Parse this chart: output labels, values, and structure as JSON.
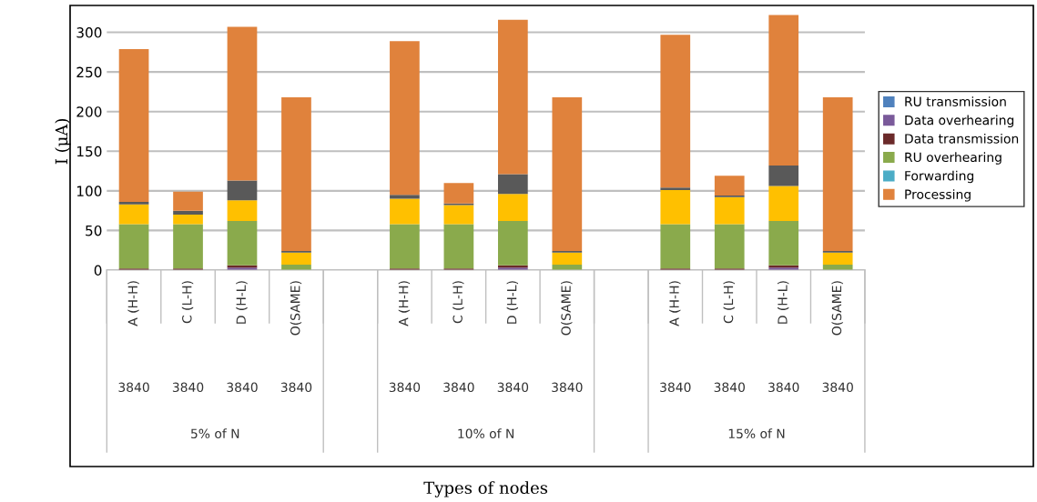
{
  "chart_data": {
    "type": "bar",
    "stacked": true,
    "ylabel": "I (μA)",
    "categories": [
      "A (H-H)\n3840",
      "C (L-H)\n3840",
      "D (H-L)\n3840",
      "O(SAME)\n3840",
      null,
      "A (H-H)\n3840",
      "C (L-H)\n3840",
      "D (H-L)\n3840",
      "O(SAME)\n3840",
      null,
      "A (H-H)\n3840",
      "C (L-H)\n3840",
      "D (H-L)\n3840",
      "O(SAME)\n3840"
    ],
    "annotations": [
      "5% of N",
      "10% of N",
      "15% of N",
      "Types of nodes"
    ],
    "series": [
      {
        "name": "RU transmission",
        "color": "#4f81bd",
        "values": [
          0,
          0,
          0,
          0,
          null,
          0,
          0,
          0,
          0,
          null,
          0,
          0,
          0,
          0
        ]
      },
      {
        "name": "Data overhearing",
        "color": "#7a5a9a",
        "values": [
          0,
          0,
          3,
          0,
          null,
          0,
          0,
          3,
          0,
          null,
          0,
          0,
          3,
          0
        ]
      },
      {
        "name": "Data transmission",
        "color": "#6b2a2a",
        "values": [
          2,
          2,
          3,
          0,
          null,
          2,
          2,
          3,
          0,
          null,
          2,
          2,
          3,
          0
        ]
      },
      {
        "name": "RU overhearing",
        "color": "#8aaa4c",
        "values": [
          56,
          56,
          56,
          7,
          null,
          56,
          56,
          56,
          7,
          null,
          56,
          56,
          56,
          7
        ]
      },
      {
        "name": "Forwarding",
        "color": "#4bacc6",
        "values": [
          0,
          0,
          0,
          0,
          null,
          0,
          0,
          0,
          0,
          null,
          0,
          0,
          0,
          0
        ]
      },
      {
        "color": "#ffc000",
        "values": [
          25,
          12,
          26,
          15,
          null,
          32,
          24,
          34,
          15,
          null,
          43,
          34,
          44,
          15
        ]
      },
      {
        "color": "#595959",
        "values": [
          3,
          5,
          25,
          2,
          null,
          5,
          2,
          25,
          2,
          null,
          3,
          2,
          26,
          2
        ]
      },
      {
        "name": "Processing",
        "color": "#e0823c",
        "values": [
          193,
          24,
          194,
          194,
          null,
          194,
          26,
          195,
          194,
          null,
          193,
          25,
          190,
          194
        ]
      }
    ],
    "ylim": [
      0,
      325
    ],
    "yticks": [
      0,
      50,
      100,
      150,
      200,
      250,
      300
    ],
    "grid": "y",
    "legend": "right"
  }
}
